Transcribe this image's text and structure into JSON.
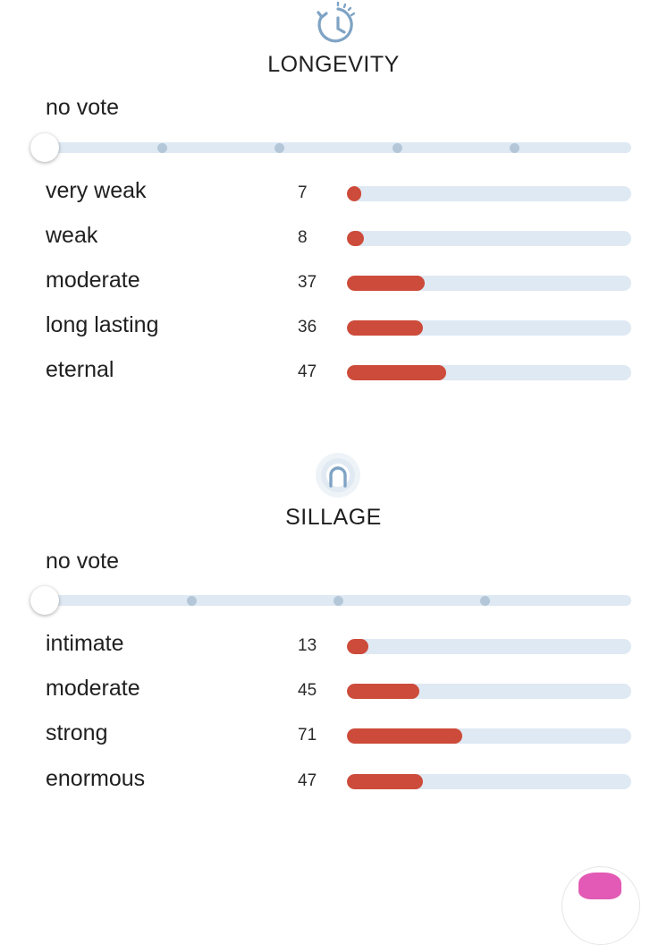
{
  "longevity": {
    "icon": "clock-history-icon",
    "title": "LONGEVITY",
    "vote_status": "no vote",
    "rows": [
      {
        "label": "very weak",
        "count": "7",
        "fill": 0.05
      },
      {
        "label": "weak",
        "count": "8",
        "fill": 0.06
      },
      {
        "label": "moderate",
        "count": "37",
        "fill": 0.275
      },
      {
        "label": "long lasting",
        "count": "36",
        "fill": 0.267
      },
      {
        "label": "eternal",
        "count": "47",
        "fill": 0.349
      }
    ]
  },
  "sillage": {
    "icon": "sillage-aura-icon",
    "title": "SILLAGE",
    "vote_status": "no vote",
    "rows": [
      {
        "label": "intimate",
        "count": "13",
        "fill": 0.075
      },
      {
        "label": "moderate",
        "count": "45",
        "fill": 0.256
      },
      {
        "label": "strong",
        "count": "71",
        "fill": 0.405
      },
      {
        "label": "enormous",
        "count": "47",
        "fill": 0.267
      }
    ]
  },
  "colors": {
    "bar_fill": "#cd4b3a",
    "track": "#dfe9f3",
    "icon_blue": "#7fa3c4"
  }
}
